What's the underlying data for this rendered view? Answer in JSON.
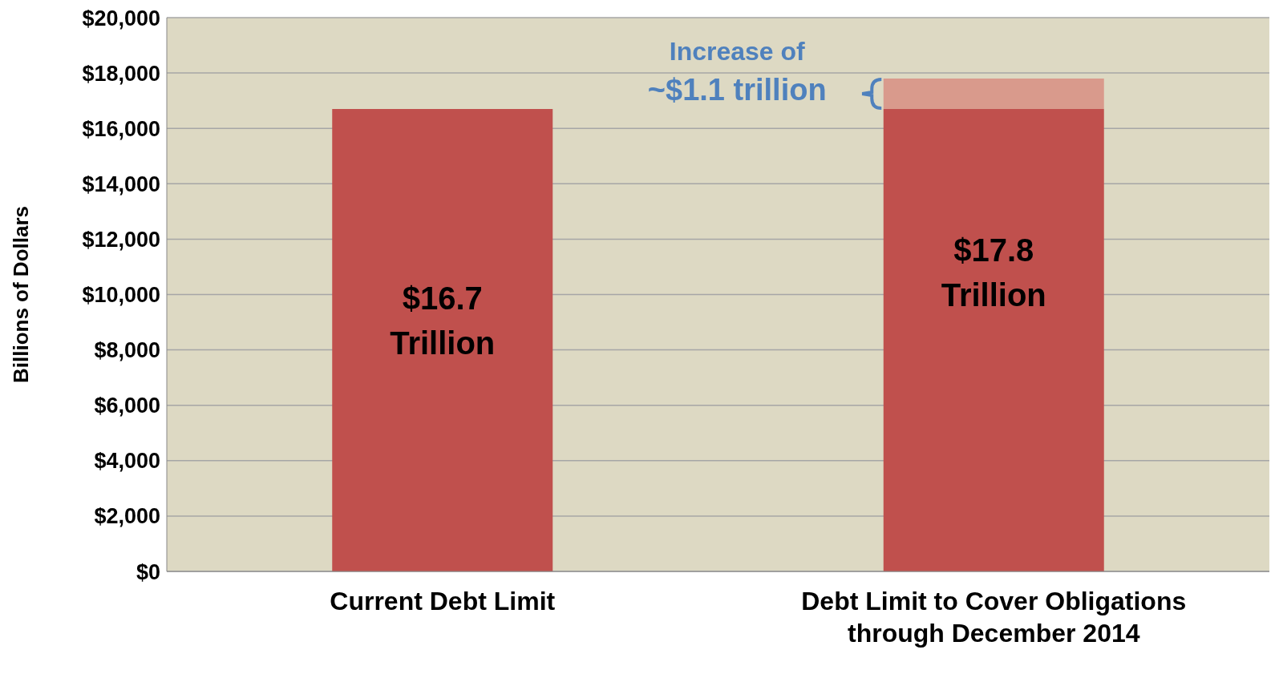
{
  "chart_data": {
    "type": "bar",
    "stacked": true,
    "ylabel": "Billions of Dollars",
    "categories": [
      "Current Debt Limit",
      "Debt Limit to Cover Obligations through December 2014"
    ],
    "series": [
      {
        "color": "#c0504d",
        "values": [
          16700,
          16700
        ]
      },
      {
        "color": "#d99a8c",
        "values": [
          null,
          1100
        ]
      }
    ],
    "ylim": [
      0,
      20000
    ],
    "yticks": [
      {
        "value": 0,
        "label": "$0"
      },
      {
        "value": 2000,
        "label": "$2,000"
      },
      {
        "value": 4000,
        "label": "$4,000"
      },
      {
        "value": 6000,
        "label": "$6,000"
      },
      {
        "value": 8000,
        "label": "$8,000"
      },
      {
        "value": 10000,
        "label": "$10,000"
      },
      {
        "value": 12000,
        "label": "$12,000"
      },
      {
        "value": 14000,
        "label": "$14,000"
      },
      {
        "value": 16000,
        "label": "$16,000"
      },
      {
        "value": 18000,
        "label": "$18,000"
      },
      {
        "value": 20000,
        "label": "$20,000"
      }
    ],
    "grid": "y",
    "annotations": [
      "Increase of ~$1.1 trillion",
      "$16.7 Trillion",
      "$17.8 Trillion"
    ]
  }
}
